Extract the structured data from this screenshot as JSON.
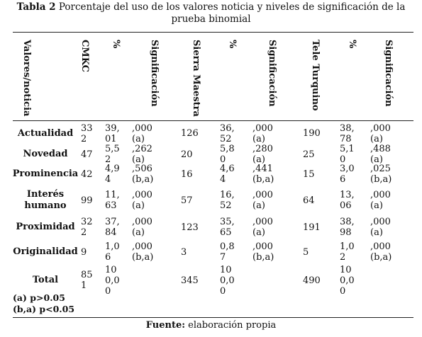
{
  "caption": {
    "label": "Tabla 2",
    "text": "Porcentaje del uso de los valores noticia y niveles de significación de la prueba binomial"
  },
  "table": {
    "headers": [
      "Valores/noticia",
      "CMKC",
      "%",
      "Significación",
      "Sierra Maestra",
      "%",
      "Significación",
      "Tele Turquino",
      "%",
      "Significación"
    ],
    "rows": [
      [
        "Actualidad",
        "332",
        "39,01",
        ",000(a)",
        "126",
        "36,52",
        ",000(a)",
        "190",
        "38,78",
        ",000(a)"
      ],
      [
        "Novedad",
        "47",
        "5,52",
        ",262(a)",
        "20",
        "5,80",
        ",280(a)",
        "25",
        "5,10",
        ",488(a)"
      ],
      [
        "Prominencia",
        "42",
        "4,94",
        ",506(b,a)",
        "16",
        "4,64",
        ",441(b,a)",
        "15",
        "3,06",
        ",025(b,a)"
      ],
      [
        "Interés humano",
        "99",
        "11,63",
        ",000(a)",
        "57",
        "16,52",
        ",000(a)",
        "64",
        "13,06",
        ",000(a)"
      ],
      [
        "Proximidad",
        "322",
        "37,84",
        ",000(a)",
        "123",
        "35,65",
        ",000(a)",
        "191",
        "38,98",
        ",000(a)"
      ],
      [
        "Originalidad",
        "9",
        "1,06",
        ",000(b,a)",
        "3",
        "0,87",
        ",000(b,a)",
        "5",
        "1,02",
        ",000(b,a)"
      ],
      [
        "Total",
        "851",
        "100,00",
        "",
        "345",
        "100,00",
        "",
        "490",
        "100,00",
        ""
      ]
    ],
    "notes": [
      "(a) p>0.05",
      "(b,a) p<0.05"
    ]
  },
  "source": {
    "label": "Fuente:",
    "text": "elaboración propia"
  }
}
